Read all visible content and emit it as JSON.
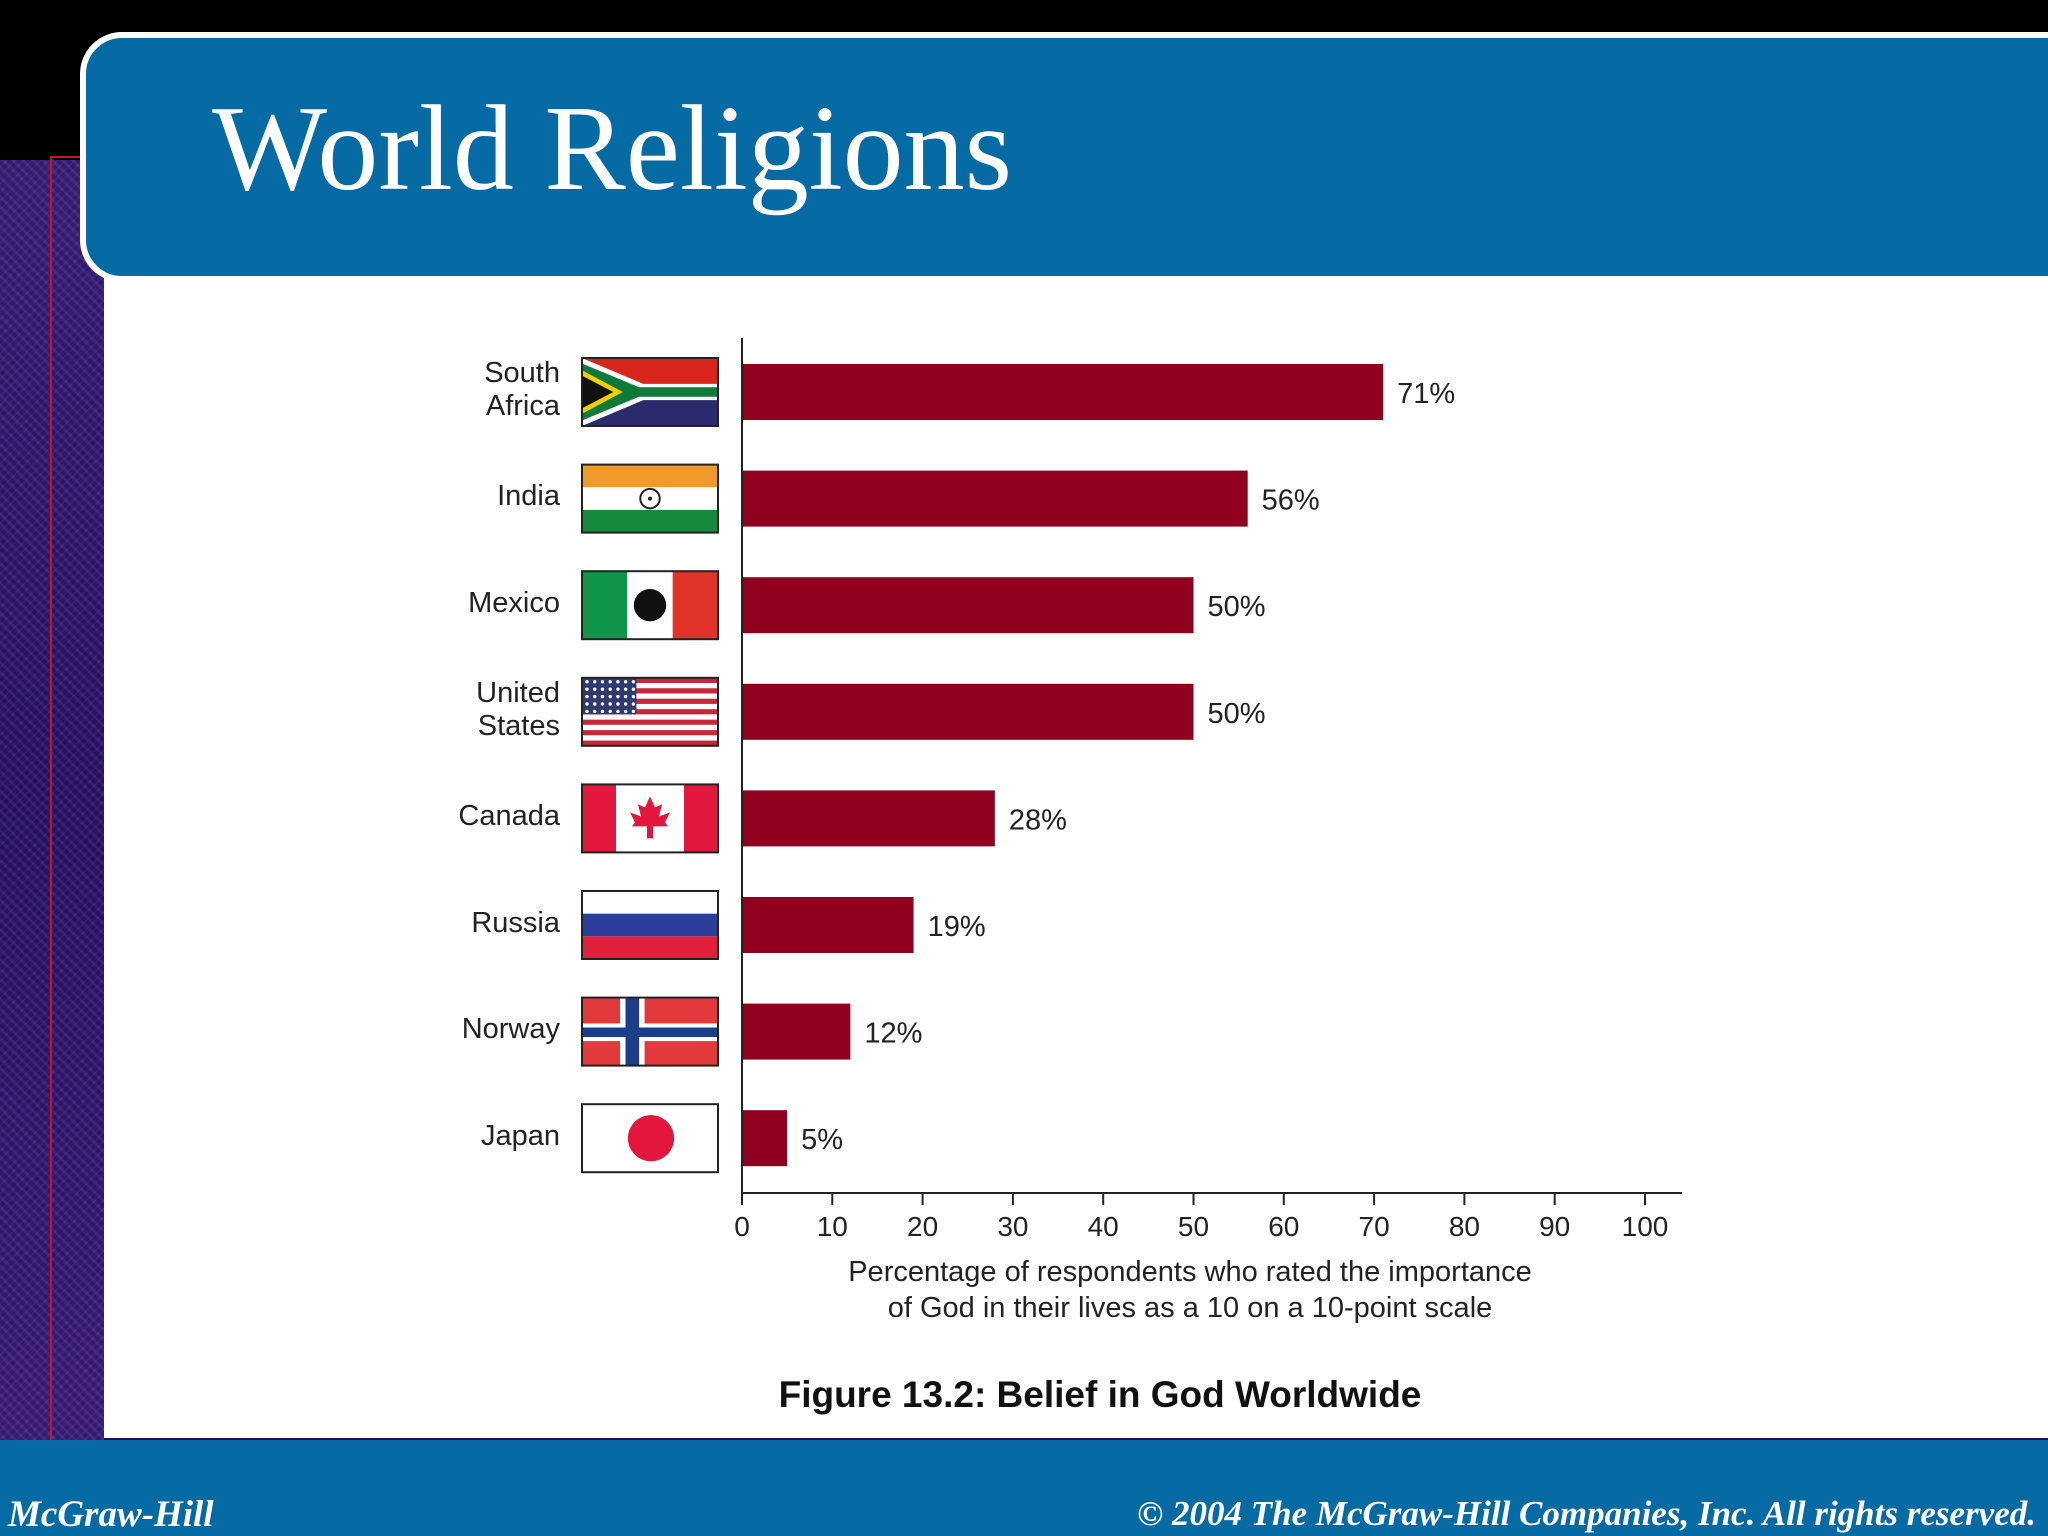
{
  "slide": {
    "title": "World Religions",
    "footer_left": "McGraw-Hill",
    "footer_right": "© 2004 The McGraw-Hill Companies, Inc. All rights reserved."
  },
  "chart_data": {
    "type": "bar",
    "orientation": "horizontal",
    "title": "Figure 13.2: Belief in God Worldwide",
    "categories": [
      "South Africa",
      "India",
      "Mexico",
      "United States",
      "Canada",
      "Russia",
      "Norway",
      "Japan"
    ],
    "category_lines": [
      [
        "South",
        "Africa"
      ],
      [
        "India"
      ],
      [
        "Mexico"
      ],
      [
        "United",
        "States"
      ],
      [
        "Canada"
      ],
      [
        "Russia"
      ],
      [
        "Norway"
      ],
      [
        "Japan"
      ]
    ],
    "values": [
      71,
      56,
      50,
      50,
      28,
      19,
      12,
      5
    ],
    "value_labels": [
      "71%",
      "56%",
      "50%",
      "50%",
      "28%",
      "19%",
      "12%",
      "5%"
    ],
    "flags": [
      "south-africa-flag-icon",
      "india-flag-icon",
      "mexico-flag-icon",
      "united-states-flag-icon",
      "canada-flag-icon",
      "russia-flag-icon",
      "norway-flag-icon",
      "japan-flag-icon"
    ],
    "xlabel": "Percentage of respondents who rated the importance of God in their lives as a 10 on a 10-point scale",
    "xlabel_lines": [
      "Percentage of respondents who rated the importance",
      "of God in their lives as a 10 on a 10-point scale"
    ],
    "xlim": [
      0,
      100
    ],
    "xticks": [
      0,
      10,
      20,
      30,
      40,
      50,
      60,
      70,
      80,
      90,
      100
    ],
    "bar_color": "#920020",
    "grid": false,
    "legend": "none"
  }
}
